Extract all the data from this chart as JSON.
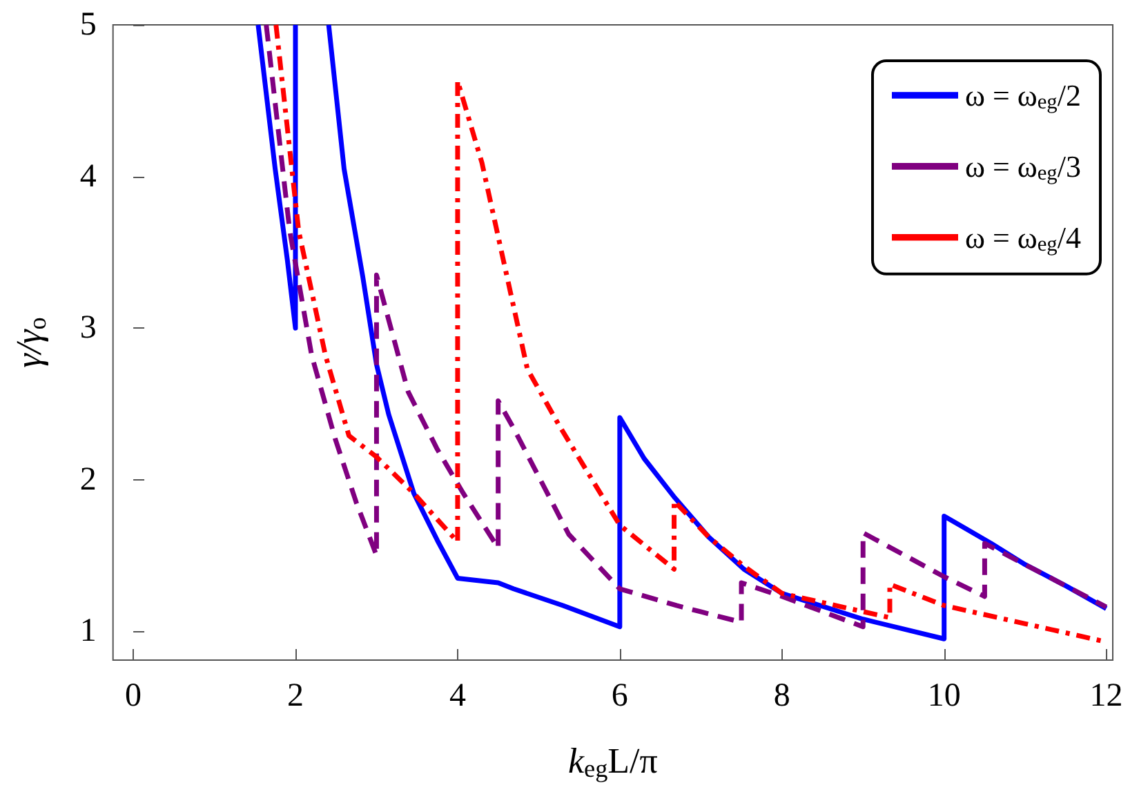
{
  "chart_data": {
    "type": "line",
    "xlabel": "k$_{eg}$L/π",
    "ylabel": "γ/γ$_{o}$",
    "xlim": [
      -0.25,
      12.08
    ],
    "ylim": [
      0.81,
      5
    ],
    "xticks": [
      0,
      2,
      4,
      6,
      8,
      10,
      12
    ],
    "yticks": [
      1,
      2,
      3,
      4,
      5
    ],
    "grid": false,
    "legend": "top right",
    "marker": "none",
    "series": [
      {
        "name": "ω = ω$_{eg}$/2",
        "color": "#0000ff",
        "line_style": "solid",
        "x": [
          1.54,
          1.75,
          1.9,
          2,
          2,
          2.2,
          2.41,
          2.6,
          2.83,
          3,
          3.15,
          3.46,
          3.75,
          4,
          4.5,
          4.69,
          5.3,
          6,
          6,
          6.3,
          6.68,
          7.1,
          7.53,
          8,
          9,
          10,
          10,
          10.58,
          11,
          11.5,
          12
        ],
        "values": [
          5,
          4.05,
          3.45,
          3.0,
          5,
          null,
          5,
          4.05,
          3.34,
          2.76,
          2.43,
          1.91,
          1.6,
          1.35,
          1.32,
          1.28,
          1.17,
          1.03,
          2.41,
          2.14,
          1.88,
          1.62,
          1.41,
          1.25,
          1.08,
          0.95,
          1.76,
          1.58,
          1.44,
          1.3,
          1.15
        ]
      },
      {
        "name": "ω = ω$_{eg}$/3",
        "color": "#800080",
        "line_style": "dashed",
        "x": [
          1.64,
          1.93,
          2.2,
          2.49,
          2.75,
          3,
          3,
          3.39,
          3.75,
          4.07,
          4.5,
          4.5,
          4.69,
          5.37,
          6,
          6.7,
          7.5,
          7.5,
          8,
          9,
          9,
          10,
          10.5,
          10.5,
          11,
          11.5,
          12
        ],
        "values": [
          5,
          3.64,
          2.82,
          2.27,
          1.85,
          1.5,
          3.35,
          2.58,
          2.2,
          1.91,
          1.55,
          2.52,
          2.34,
          1.64,
          1.28,
          1.17,
          1.06,
          1.32,
          1.23,
          1.03,
          1.65,
          1.36,
          1.23,
          1.58,
          1.44,
          1.3,
          1.16
        ]
      },
      {
        "name": "ω = ω$_{eg}$/4",
        "color": "#ff0000",
        "line_style": "dashdot",
        "x": [
          1.76,
          2.04,
          2.37,
          2.66,
          3,
          3.46,
          4,
          4,
          4.3,
          4.86,
          5.25,
          6,
          6.67,
          6.67,
          7.1,
          7.53,
          8,
          9.33,
          9.33,
          10,
          11,
          12
        ],
        "values": [
          5,
          3.64,
          2.82,
          2.29,
          2.15,
          1.91,
          1.59,
          4.63,
          4.09,
          2.73,
          2.36,
          1.7,
          1.41,
          1.86,
          1.62,
          1.43,
          1.25,
          1.09,
          1.31,
          1.17,
          1.05,
          0.93
        ]
      }
    ]
  }
}
